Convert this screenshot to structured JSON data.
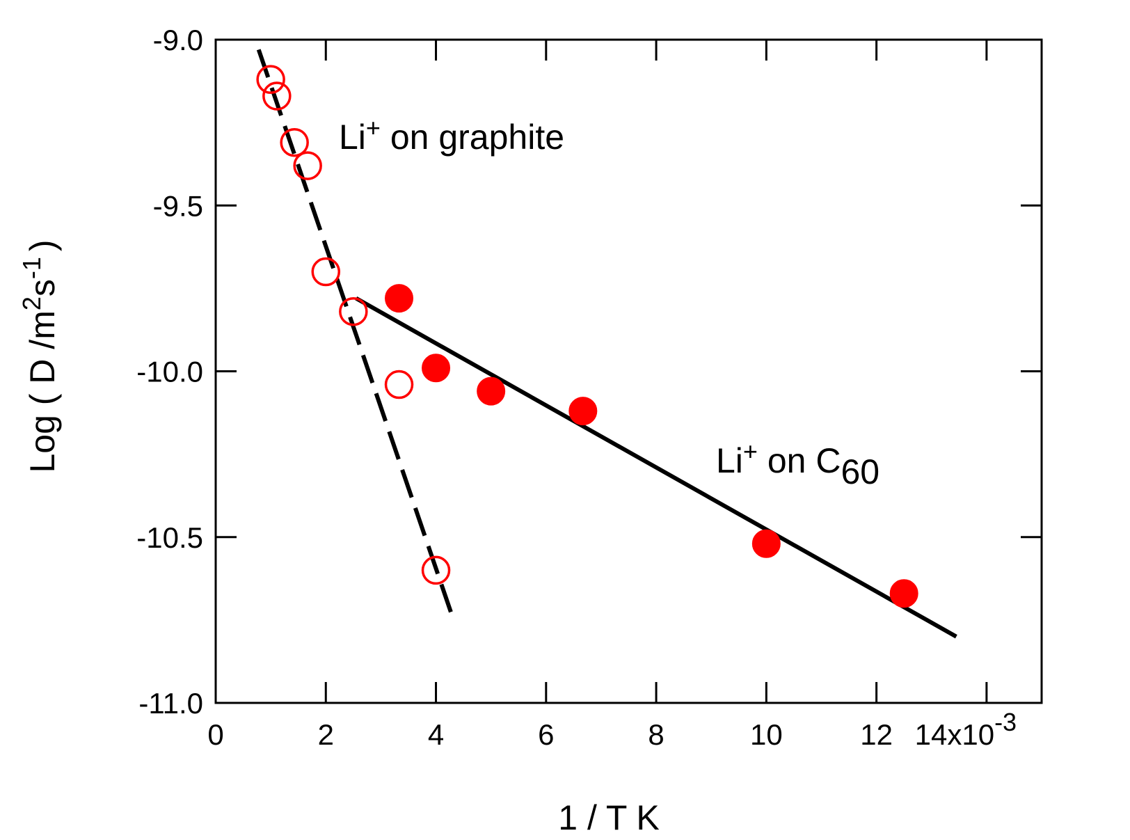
{
  "chart_data": {
    "type": "scatter",
    "xlabel": "1 / T K",
    "ylabel": {
      "text": "Log ( D /m",
      "sup1": "2",
      "mid": "s",
      "sup2": "-1",
      "end": ")"
    },
    "x_tick_labels": [
      "0",
      "2",
      "4",
      "6",
      "8",
      "10",
      "12",
      "14x10"
    ],
    "x_tick_exponent": "-3",
    "y_tick_labels": [
      "-9.0",
      "-9.5",
      "-10.0",
      "-10.5",
      "-11.0"
    ],
    "xlim": [
      0,
      0.015
    ],
    "ylim": [
      -11.0,
      -9.0
    ],
    "x_tick_values": [
      0,
      0.002,
      0.004,
      0.006,
      0.008,
      0.01,
      0.012,
      0.014
    ],
    "y_tick_values": [
      -9.0,
      -9.5,
      -10.0,
      -10.5,
      -11.0
    ],
    "grid": false,
    "colors": {
      "markers": "#ff0000",
      "lines": "#000000"
    },
    "annotations": [
      {
        "base": "Li",
        "sup": "+",
        "text": " on graphite",
        "sub": ""
      },
      {
        "base": "Li",
        "sup": "+",
        "text": " on C",
        "sub": "60"
      }
    ],
    "series": [
      {
        "marker": "open-circle",
        "x": [
          0.001,
          0.00111,
          0.00143,
          0.00167,
          0.002,
          0.0025,
          0.00333,
          0.004
        ],
        "y": [
          -9.12,
          -9.17,
          -9.31,
          -9.38,
          -9.7,
          -9.82,
          -10.04,
          -10.6
        ]
      },
      {
        "marker": "filled-circle",
        "x": [
          0.00333,
          0.004,
          0.005,
          0.00667,
          0.01,
          0.0125
        ],
        "y": [
          -9.78,
          -9.99,
          -10.06,
          -10.12,
          -10.52,
          -10.67
        ]
      }
    ],
    "fit_lines": [
      {
        "style": "dashed",
        "x": [
          0.00078,
          0.00432
        ],
        "y": [
          -9.03,
          -10.75
        ]
      },
      {
        "style": "solid",
        "x": [
          0.00255,
          0.01345
        ],
        "y": [
          -9.78,
          -10.8
        ]
      }
    ]
  }
}
